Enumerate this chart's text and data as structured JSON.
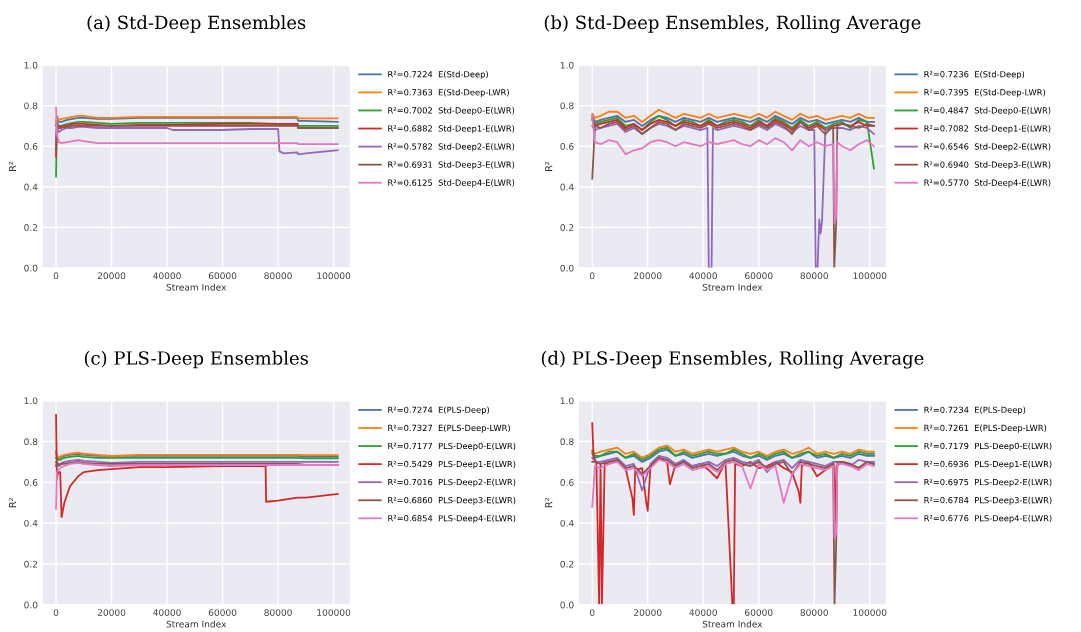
{
  "chart_data": [
    {
      "type": "line",
      "title": "(a) Std-Deep Ensembles",
      "xlabel": "Stream Index",
      "ylabel": "R²",
      "xlim": [
        -5000,
        106000
      ],
      "ylim": [
        0,
        1
      ],
      "xticks": [
        0,
        20000,
        40000,
        60000,
        80000,
        100000
      ],
      "yticks": [
        {
          "value": 0,
          "label": "0.0"
        },
        {
          "value": 0.2,
          "label": "0.2"
        },
        {
          "value": 0.4,
          "label": "0.4"
        },
        {
          "value": 0.6,
          "label": "0.6"
        },
        {
          "value": 0.8,
          "label": "0.8"
        },
        {
          "value": 1,
          "label": "1.0"
        }
      ],
      "grid": true,
      "legend": "right",
      "line_style": "solid",
      "x": [
        0,
        300,
        1000,
        2000,
        4000,
        6000,
        8000,
        10000,
        15000,
        20000,
        30000,
        40000,
        42000,
        60000,
        70000,
        80000,
        80500,
        82000,
        87000,
        87200,
        90000,
        101500
      ],
      "series": [
        {
          "name": "R²=0.7224  E(Std-Deep)",
          "color": "#4c72b0",
          "values": [
            0.7,
            0.74,
            0.72,
            0.72,
            0.73,
            0.735,
            0.74,
            0.74,
            0.735,
            0.735,
            0.74,
            0.74,
            0.74,
            0.74,
            0.74,
            0.74,
            0.74,
            0.74,
            0.74,
            0.725,
            0.725,
            0.72
          ]
        },
        {
          "name": "R²=0.7363  E(Std-Deep-LWR)",
          "color": "#ff7f0e",
          "values": [
            0.72,
            0.75,
            0.73,
            0.735,
            0.74,
            0.745,
            0.75,
            0.75,
            0.74,
            0.74,
            0.745,
            0.745,
            0.745,
            0.745,
            0.745,
            0.745,
            0.745,
            0.745,
            0.745,
            0.737,
            0.737,
            0.737
          ]
        },
        {
          "name": "R²=0.7002  Std-Deep0-E(LWR)",
          "color": "#2ca02c",
          "values": [
            0.45,
            0.72,
            0.7,
            0.7,
            0.71,
            0.715,
            0.72,
            0.72,
            0.715,
            0.71,
            0.715,
            0.715,
            0.715,
            0.715,
            0.715,
            0.71,
            0.71,
            0.71,
            0.71,
            0.7,
            0.7,
            0.7
          ]
        },
        {
          "name": "R²=0.6882  Std-Deep1-E(LWR)",
          "color": "#d62728",
          "values": [
            0.55,
            0.71,
            0.69,
            0.7,
            0.7,
            0.71,
            0.71,
            0.71,
            0.705,
            0.7,
            0.705,
            0.705,
            0.705,
            0.71,
            0.71,
            0.71,
            0.71,
            0.71,
            0.71,
            0.69,
            0.69,
            0.69
          ]
        },
        {
          "name": "R²=0.5782  Std-Deep2-E(LWR)",
          "color": "#9467bd",
          "values": [
            0.6,
            0.7,
            0.67,
            0.68,
            0.69,
            0.69,
            0.695,
            0.695,
            0.69,
            0.69,
            0.69,
            0.69,
            0.68,
            0.68,
            0.685,
            0.685,
            0.575,
            0.565,
            0.57,
            0.56,
            0.565,
            0.58
          ]
        },
        {
          "name": "R²=0.6931  Std-Deep3-E(LWR)",
          "color": "#8c564b",
          "values": [
            0.58,
            0.7,
            0.69,
            0.69,
            0.695,
            0.7,
            0.7,
            0.7,
            0.7,
            0.7,
            0.7,
            0.7,
            0.7,
            0.7,
            0.7,
            0.7,
            0.7,
            0.7,
            0.7,
            0.69,
            0.69,
            0.69
          ]
        },
        {
          "name": "R²=0.6125  Std-Deep4-E(LWR)",
          "color": "#e377c2",
          "values": [
            0.79,
            0.66,
            0.62,
            0.615,
            0.62,
            0.625,
            0.63,
            0.625,
            0.615,
            0.615,
            0.615,
            0.615,
            0.615,
            0.615,
            0.615,
            0.615,
            0.615,
            0.615,
            0.615,
            0.61,
            0.61,
            0.61
          ]
        }
      ]
    },
    {
      "type": "line",
      "title": "(b) Std-Deep Ensembles, Rolling Average",
      "xlabel": "Stream Index",
      "ylabel": "R²",
      "xlim": [
        -5000,
        106000
      ],
      "ylim": [
        0,
        1
      ],
      "xticks": [
        0,
        20000,
        40000,
        60000,
        80000,
        100000
      ],
      "yticks": [
        {
          "value": 0,
          "label": "0.0"
        },
        {
          "value": 0.2,
          "label": "0.2"
        },
        {
          "value": 0.4,
          "label": "0.4"
        },
        {
          "value": 0.6,
          "label": "0.6"
        },
        {
          "value": 0.8,
          "label": "0.8"
        },
        {
          "value": 1,
          "label": "1.0"
        }
      ],
      "grid": true,
      "legend": "right",
      "line_style": "solid",
      "x": [
        0,
        1000,
        3000,
        6000,
        9000,
        12000,
        15000,
        18000,
        21000,
        24000,
        27000,
        30000,
        33000,
        36000,
        39000,
        42000,
        45000,
        48000,
        51000,
        54000,
        57000,
        60000,
        63000,
        66000,
        69000,
        72000,
        75000,
        78000,
        81000,
        84000,
        87000,
        90000,
        93000,
        96000,
        99000,
        101500
      ],
      "series": [
        {
          "name": "R²=0.7236  E(Std-Deep)",
          "color": "#4c72b0",
          "values": [
            0.75,
            0.72,
            0.73,
            0.74,
            0.75,
            0.72,
            0.73,
            0.7,
            0.73,
            0.75,
            0.74,
            0.72,
            0.74,
            0.73,
            0.72,
            0.74,
            0.72,
            0.73,
            0.74,
            0.73,
            0.72,
            0.74,
            0.72,
            0.75,
            0.73,
            0.71,
            0.74,
            0.72,
            0.73,
            0.71,
            0.72,
            0.73,
            0.72,
            0.74,
            0.72,
            0.72
          ]
        },
        {
          "name": "R²=0.7395  E(Std-Deep-LWR)",
          "color": "#ff7f0e",
          "values": [
            0.76,
            0.74,
            0.75,
            0.77,
            0.77,
            0.74,
            0.75,
            0.72,
            0.75,
            0.78,
            0.76,
            0.74,
            0.76,
            0.75,
            0.74,
            0.76,
            0.74,
            0.75,
            0.76,
            0.75,
            0.74,
            0.76,
            0.74,
            0.77,
            0.75,
            0.73,
            0.76,
            0.74,
            0.75,
            0.73,
            0.74,
            0.75,
            0.74,
            0.76,
            0.74,
            0.74
          ]
        },
        {
          "name": "R²=0.4847  Std-Deep0-E(LWR)",
          "color": "#2ca02c",
          "values": [
            0.74,
            0.71,
            0.72,
            0.73,
            0.74,
            0.7,
            0.71,
            0.68,
            0.72,
            0.75,
            0.73,
            0.7,
            0.73,
            0.72,
            0.7,
            0.73,
            0.7,
            0.72,
            0.73,
            0.72,
            0.7,
            0.73,
            0.7,
            0.74,
            0.72,
            0.69,
            0.73,
            0.7,
            0.72,
            0.69,
            0.71,
            0.72,
            0.69,
            0.73,
            0.72,
            0.49
          ]
        },
        {
          "name": "R²=0.7082  Std-Deep1-E(LWR)",
          "color": "#d62728",
          "values": [
            0.73,
            0.7,
            0.71,
            0.72,
            0.73,
            0.69,
            0.71,
            0.68,
            0.71,
            0.73,
            0.72,
            0.7,
            0.72,
            0.71,
            0.7,
            0.72,
            0.7,
            0.71,
            0.72,
            0.71,
            0.69,
            0.72,
            0.7,
            0.73,
            0.71,
            0.68,
            0.72,
            0.69,
            0.71,
            0.68,
            0.7,
            0.71,
            0.7,
            0.72,
            0.7,
            0.7
          ]
        },
        {
          "name": "R²=0.6546  Std-Deep2-E(LWR)",
          "color": "#9467bd",
          "x": [
            0,
            1000,
            3000,
            6000,
            9000,
            12000,
            15000,
            18000,
            21000,
            24000,
            27000,
            30000,
            33000,
            36000,
            39000,
            41500,
            42000,
            43000,
            43500,
            45000,
            48000,
            51000,
            54000,
            57000,
            60000,
            63000,
            66000,
            69000,
            72000,
            75000,
            78000,
            80000,
            80500,
            81200,
            81800,
            82300,
            82800,
            84000,
            87000,
            90000,
            93000,
            96000,
            99000,
            101500
          ],
          "values": [
            0.7,
            0.68,
            0.69,
            0.7,
            0.71,
            0.67,
            0.69,
            0.66,
            0.69,
            0.71,
            0.7,
            0.68,
            0.7,
            0.69,
            0.68,
            0.69,
            0,
            0,
            0.69,
            0.68,
            0.69,
            0.7,
            0.69,
            0.68,
            0.7,
            0.68,
            0.71,
            0.69,
            0.67,
            0.7,
            0.68,
            0.68,
            0,
            0,
            0.24,
            0.17,
            0.23,
            0.68,
            0.69,
            0.69,
            0.68,
            0.7,
            0.69,
            0.66
          ]
        },
        {
          "name": "R²=0.6940  Std-Deep3-E(LWR)",
          "color": "#8c564b",
          "x": [
            0,
            1000,
            3000,
            6000,
            9000,
            12000,
            15000,
            18000,
            21000,
            24000,
            27000,
            30000,
            33000,
            36000,
            39000,
            42000,
            45000,
            48000,
            51000,
            54000,
            57000,
            60000,
            63000,
            66000,
            69000,
            72000,
            75000,
            78000,
            81000,
            84000,
            86800,
            87200,
            87900,
            88300,
            90000,
            93000,
            96000,
            99000,
            101500
          ],
          "values": [
            0.44,
            0.7,
            0.69,
            0.71,
            0.72,
            0.68,
            0.7,
            0.66,
            0.69,
            0.72,
            0.71,
            0.68,
            0.71,
            0.7,
            0.69,
            0.71,
            0.69,
            0.7,
            0.71,
            0.7,
            0.68,
            0.71,
            0.69,
            0.72,
            0.7,
            0.66,
            0.72,
            0.68,
            0.7,
            0.66,
            0.7,
            0,
            0.22,
            0.7,
            0.71,
            0.7,
            0.69,
            0.71,
            0.7
          ]
        },
        {
          "name": "R²=0.5770  Std-Deep4-E(LWR)",
          "color": "#e377c2",
          "x": [
            0,
            1000,
            3000,
            6000,
            9000,
            12000,
            15000,
            18000,
            21000,
            24000,
            27000,
            30000,
            33000,
            36000,
            39000,
            42000,
            45000,
            48000,
            51000,
            54000,
            57000,
            60000,
            63000,
            66000,
            69000,
            72000,
            75000,
            78000,
            81000,
            84000,
            86800,
            87300,
            87900,
            88300,
            90000,
            93000,
            96000,
            99000,
            101500
          ],
          "values": [
            0.75,
            0.62,
            0.61,
            0.63,
            0.62,
            0.56,
            0.58,
            0.59,
            0.62,
            0.63,
            0.62,
            0.6,
            0.62,
            0.61,
            0.6,
            0.62,
            0.61,
            0.62,
            0.63,
            0.61,
            0.6,
            0.63,
            0.61,
            0.64,
            0.62,
            0.58,
            0.63,
            0.6,
            0.62,
            0.6,
            0.61,
            0.22,
            0.25,
            0.62,
            0.6,
            0.58,
            0.61,
            0.63,
            0.6
          ]
        }
      ]
    },
    {
      "type": "line",
      "title": "(c) PLS-Deep Ensembles",
      "xlabel": "Stream Index",
      "ylabel": "R²",
      "xlim": [
        -5000,
        106000
      ],
      "ylim": [
        0,
        1
      ],
      "xticks": [
        0,
        20000,
        40000,
        60000,
        80000,
        100000
      ],
      "yticks": [
        {
          "value": 0,
          "label": "0.0"
        },
        {
          "value": 0.2,
          "label": "0.2"
        },
        {
          "value": 0.4,
          "label": "0.4"
        },
        {
          "value": 0.6,
          "label": "0.6"
        },
        {
          "value": 0.8,
          "label": "0.8"
        },
        {
          "value": 1,
          "label": "1.0"
        }
      ],
      "grid": true,
      "legend": "right",
      "line_style": "solid",
      "x": [
        0,
        300,
        800,
        1500,
        2000,
        3000,
        5000,
        8000,
        10000,
        15000,
        20000,
        30000,
        40000,
        60000,
        75500,
        75700,
        80000,
        87000,
        90000,
        101500
      ],
      "series": [
        {
          "name": "R²=0.7274  E(PLS-Deep)",
          "color": "#4c72b0",
          "values": [
            0.75,
            0.73,
            0.72,
            0.72,
            0.725,
            0.73,
            0.735,
            0.74,
            0.735,
            0.73,
            0.73,
            0.73,
            0.73,
            0.73,
            0.73,
            0.73,
            0.73,
            0.73,
            0.727,
            0.727
          ]
        },
        {
          "name": "R²=0.7327  E(PLS-Deep-LWR)",
          "color": "#ff7f0e",
          "values": [
            0.74,
            0.73,
            0.72,
            0.725,
            0.73,
            0.735,
            0.74,
            0.745,
            0.74,
            0.735,
            0.73,
            0.735,
            0.735,
            0.735,
            0.735,
            0.735,
            0.735,
            0.735,
            0.733,
            0.733
          ]
        },
        {
          "name": "R²=0.7177  PLS-Deep0-E(LWR)",
          "color": "#2ca02c",
          "values": [
            0.72,
            0.72,
            0.71,
            0.71,
            0.715,
            0.72,
            0.725,
            0.73,
            0.725,
            0.72,
            0.72,
            0.72,
            0.72,
            0.72,
            0.72,
            0.72,
            0.72,
            0.72,
            0.718,
            0.718
          ]
        },
        {
          "name": "R²=0.5429  PLS-Deep1-E(LWR)",
          "color": "#d62728",
          "values": [
            0.93,
            0.62,
            0.65,
            0.65,
            0.43,
            0.5,
            0.58,
            0.63,
            0.65,
            0.66,
            0.665,
            0.675,
            0.675,
            0.68,
            0.68,
            0.505,
            0.51,
            0.525,
            0.525,
            0.543
          ]
        },
        {
          "name": "R²=0.7016  PLS-Deep2-E(LWR)",
          "color": "#9467bd",
          "values": [
            0.7,
            0.7,
            0.69,
            0.69,
            0.695,
            0.7,
            0.705,
            0.71,
            0.705,
            0.7,
            0.695,
            0.7,
            0.7,
            0.7,
            0.7,
            0.7,
            0.7,
            0.7,
            0.7,
            0.7
          ]
        },
        {
          "name": "R²=0.6860  PLS-Deep3-E(LWR)",
          "color": "#8c564b",
          "values": [
            0.68,
            0.7,
            0.68,
            0.685,
            0.69,
            0.69,
            0.695,
            0.7,
            0.695,
            0.69,
            0.69,
            0.69,
            0.69,
            0.69,
            0.69,
            0.69,
            0.69,
            0.69,
            0.686,
            0.686
          ]
        },
        {
          "name": "R²=0.6854  PLS-Deep4-E(LWR)",
          "color": "#e377c2",
          "values": [
            0.47,
            0.65,
            0.66,
            0.67,
            0.675,
            0.68,
            0.69,
            0.695,
            0.69,
            0.685,
            0.68,
            0.685,
            0.685,
            0.685,
            0.685,
            0.685,
            0.685,
            0.685,
            0.685,
            0.685
          ]
        }
      ]
    },
    {
      "type": "line",
      "title": "(d) PLS-Deep Ensembles, Rolling Average",
      "xlabel": "Stream Index",
      "ylabel": "R²",
      "xlim": [
        -5000,
        106000
      ],
      "ylim": [
        0,
        1
      ],
      "xticks": [
        0,
        20000,
        40000,
        60000,
        80000,
        100000
      ],
      "yticks": [
        {
          "value": 0,
          "label": "0.0"
        },
        {
          "value": 0.2,
          "label": "0.2"
        },
        {
          "value": 0.4,
          "label": "0.4"
        },
        {
          "value": 0.6,
          "label": "0.6"
        },
        {
          "value": 0.8,
          "label": "0.8"
        },
        {
          "value": 1,
          "label": "1.0"
        }
      ],
      "grid": true,
      "legend": "right",
      "line_style": "solid",
      "x": [
        0,
        1000,
        3000,
        6000,
        9000,
        12000,
        15000,
        18000,
        21000,
        24000,
        27000,
        30000,
        33000,
        36000,
        39000,
        42000,
        45000,
        48000,
        51000,
        54000,
        57000,
        60000,
        63000,
        66000,
        69000,
        72000,
        75000,
        78000,
        81000,
        84000,
        87000,
        90000,
        93000,
        96000,
        99000,
        101500
      ],
      "series": [
        {
          "name": "R²=0.7234  E(PLS-Deep)",
          "color": "#4c72b0",
          "values": [
            0.74,
            0.72,
            0.73,
            0.74,
            0.75,
            0.72,
            0.73,
            0.7,
            0.72,
            0.75,
            0.76,
            0.73,
            0.74,
            0.72,
            0.73,
            0.74,
            0.73,
            0.74,
            0.75,
            0.73,
            0.72,
            0.73,
            0.71,
            0.73,
            0.74,
            0.72,
            0.73,
            0.75,
            0.72,
            0.73,
            0.72,
            0.73,
            0.72,
            0.74,
            0.73,
            0.73
          ]
        },
        {
          "name": "R²=0.7261  E(PLS-Deep-LWR)",
          "color": "#ff7f0e",
          "values": [
            0.76,
            0.74,
            0.75,
            0.76,
            0.77,
            0.74,
            0.75,
            0.72,
            0.74,
            0.77,
            0.78,
            0.75,
            0.76,
            0.74,
            0.75,
            0.76,
            0.75,
            0.76,
            0.77,
            0.75,
            0.74,
            0.75,
            0.73,
            0.75,
            0.76,
            0.74,
            0.75,
            0.77,
            0.74,
            0.75,
            0.74,
            0.75,
            0.74,
            0.76,
            0.75,
            0.75
          ]
        },
        {
          "name": "R²=0.7179  PLS-Deep0-E(LWR)",
          "color": "#2ca02c",
          "values": [
            0.75,
            0.73,
            0.73,
            0.75,
            0.75,
            0.72,
            0.74,
            0.71,
            0.73,
            0.76,
            0.77,
            0.73,
            0.75,
            0.73,
            0.74,
            0.75,
            0.74,
            0.74,
            0.76,
            0.74,
            0.72,
            0.74,
            0.72,
            0.74,
            0.75,
            0.72,
            0.74,
            0.75,
            0.73,
            0.74,
            0.72,
            0.74,
            0.73,
            0.75,
            0.74,
            0.74
          ]
        },
        {
          "name": "R²=0.6936  PLS-Deep1-E(LWR)",
          "color": "#d62728",
          "x": [
            0,
            500,
            1500,
            2500,
            3000,
            3500,
            4500,
            6000,
            9000,
            12000,
            14500,
            15000,
            15500,
            18000,
            19500,
            20000,
            21000,
            24000,
            27000,
            28000,
            30000,
            33000,
            36000,
            39000,
            42000,
            45000,
            48000,
            50500,
            51000,
            51500,
            54000,
            57000,
            60000,
            63000,
            66000,
            69000,
            72000,
            74500,
            75000,
            75500,
            78000,
            81000,
            84000,
            87000,
            87500,
            88000,
            90000,
            93000,
            96000,
            99000,
            101500
          ],
          "values": [
            0.89,
            0.72,
            0.7,
            0,
            0.69,
            0,
            0.7,
            0.69,
            0.71,
            0.67,
            0.52,
            0.44,
            0.66,
            0.67,
            0.5,
            0.46,
            0.68,
            0.72,
            0.7,
            0.59,
            0.69,
            0.7,
            0.68,
            0.69,
            0.66,
            0.62,
            0.7,
            0,
            0,
            0.69,
            0.68,
            0.7,
            0.67,
            0.68,
            0.7,
            0.67,
            0.65,
            0.55,
            0.5,
            0.68,
            0.7,
            0.63,
            0.66,
            0.7,
            0.4,
            0.68,
            0.7,
            0.69,
            0.67,
            0.7,
            0.69
          ]
        },
        {
          "name": "R²=0.6975  PLS-Deep2-E(LWR)",
          "color": "#9467bd",
          "values": [
            0.72,
            0.7,
            0.7,
            0.71,
            0.72,
            0.68,
            0.69,
            0.56,
            0.69,
            0.73,
            0.72,
            0.69,
            0.71,
            0.68,
            0.69,
            0.7,
            0.68,
            0.71,
            0.72,
            0.7,
            0.69,
            0.71,
            0.65,
            0.7,
            0.71,
            0.67,
            0.71,
            0.7,
            0.69,
            0.68,
            0.7,
            0.7,
            0.68,
            0.71,
            0.7,
            0.7
          ]
        },
        {
          "name": "R²=0.6784  PLS-Deep3-E(LWR)",
          "color": "#8c564b",
          "x": [
            0,
            1000,
            3000,
            6000,
            9000,
            12000,
            15000,
            18000,
            21000,
            24000,
            27000,
            30000,
            33000,
            36000,
            39000,
            42000,
            45000,
            48000,
            51000,
            54000,
            57000,
            60000,
            63000,
            66000,
            69000,
            72000,
            75000,
            78000,
            81000,
            84000,
            86800,
            87300,
            87900,
            88300,
            90000,
            93000,
            96000,
            99000,
            101500
          ],
          "values": [
            0.7,
            0.7,
            0.69,
            0.7,
            0.71,
            0.67,
            0.68,
            0.64,
            0.68,
            0.72,
            0.71,
            0.68,
            0.7,
            0.67,
            0.68,
            0.69,
            0.66,
            0.7,
            0.71,
            0.69,
            0.68,
            0.7,
            0.67,
            0.69,
            0.7,
            0.64,
            0.7,
            0.69,
            0.68,
            0.67,
            0.69,
            0,
            0.3,
            0.7,
            0.7,
            0.69,
            0.67,
            0.7,
            0.69
          ]
        },
        {
          "name": "R²=0.6776  PLS-Deep4-E(LWR)",
          "color": "#e377c2",
          "x": [
            0,
            1000,
            3000,
            6000,
            9000,
            12000,
            15000,
            18000,
            21000,
            24000,
            27000,
            30000,
            33000,
            36000,
            39000,
            42000,
            45000,
            48000,
            51000,
            54000,
            57000,
            60000,
            63000,
            66000,
            69000,
            72000,
            75000,
            78000,
            81000,
            84000,
            86800,
            87300,
            87900,
            88300,
            90000,
            93000,
            96000,
            99000,
            101500
          ],
          "values": [
            0.48,
            0.68,
            0.67,
            0.69,
            0.7,
            0.66,
            0.67,
            0.63,
            0.67,
            0.71,
            0.7,
            0.67,
            0.69,
            0.66,
            0.67,
            0.68,
            0.65,
            0.69,
            0.7,
            0.68,
            0.57,
            0.69,
            0.66,
            0.68,
            0.5,
            0.64,
            0.69,
            0.68,
            0.67,
            0.66,
            0.68,
            0.33,
            0.35,
            0.69,
            0.69,
            0.68,
            0.66,
            0.69,
            0.68
          ]
        }
      ]
    }
  ]
}
